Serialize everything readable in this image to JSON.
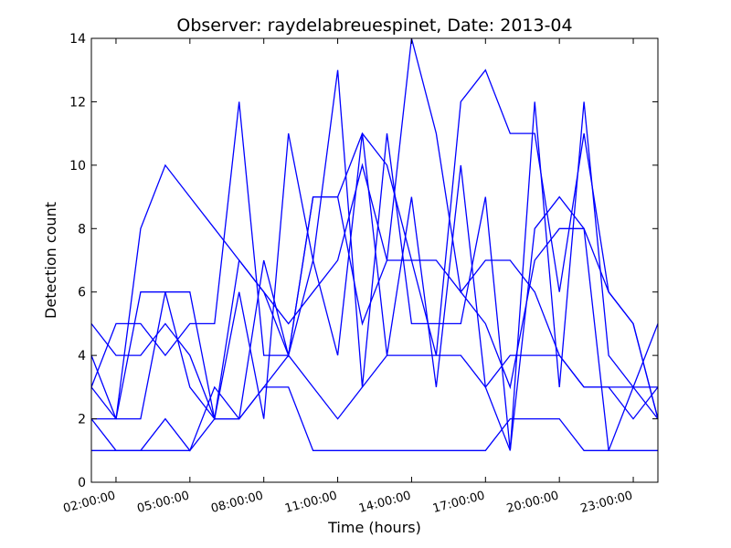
{
  "chart_data": {
    "type": "line",
    "title": "Observer: raydelabreuespinet, Date: 2013-04",
    "xlabel": "Time (hours)",
    "ylabel": "Detection count",
    "xlim": [
      1,
      24
    ],
    "ylim": [
      0,
      14
    ],
    "xticks": [
      2,
      5,
      8,
      11,
      14,
      17,
      20,
      23
    ],
    "xtick_labels": [
      "02:00:00",
      "05:00:00",
      "08:00:00",
      "11:00:00",
      "14:00:00",
      "17:00:00",
      "20:00:00",
      "23:00:00"
    ],
    "yticks": [
      0,
      2,
      4,
      6,
      8,
      10,
      12,
      14
    ],
    "ytick_labels": [
      "0",
      "2",
      "4",
      "6",
      "8",
      "10",
      "12",
      "14"
    ],
    "grid": false,
    "line_color": "#0000ff",
    "series": [
      {
        "x": [
          1,
          2,
          3,
          4,
          5,
          6,
          7,
          8,
          9,
          10,
          11,
          12,
          13,
          14,
          15,
          16,
          17,
          18,
          19,
          20,
          21,
          22,
          23,
          24
        ],
        "y": [
          5,
          4,
          4,
          5,
          4,
          2,
          2,
          7,
          4,
          9,
          9,
          11,
          10,
          7,
          7,
          6,
          5,
          3,
          7,
          8,
          8,
          6,
          5,
          2
        ]
      },
      {
        "x": [
          1,
          2,
          3,
          4,
          5,
          6,
          7,
          8,
          9,
          10,
          11,
          12,
          13,
          14,
          15,
          16,
          17,
          18,
          19,
          20,
          21,
          22,
          23,
          24
        ],
        "y": [
          3,
          2,
          2,
          6,
          6,
          2,
          7,
          6,
          4,
          9,
          9,
          5,
          7,
          14,
          11,
          6,
          7,
          7,
          6,
          4,
          3,
          3,
          3,
          3
        ]
      },
      {
        "x": [
          1,
          2,
          3,
          4,
          5,
          6,
          7,
          8,
          9,
          10,
          11,
          12,
          13,
          14,
          15,
          16,
          17,
          18,
          19,
          20,
          21,
          22,
          23,
          24
        ],
        "y": [
          4,
          2,
          8,
          10,
          9,
          8,
          7,
          6,
          5,
          6,
          7,
          10,
          7,
          7,
          4,
          12,
          13,
          11,
          11,
          6,
          11,
          6,
          5,
          2
        ]
      },
      {
        "x": [
          1,
          2,
          3,
          4,
          5,
          6,
          7,
          8,
          9,
          10,
          11,
          12,
          13,
          14,
          15,
          16,
          17,
          18,
          19,
          20,
          21,
          22,
          23,
          24
        ],
        "y": [
          1,
          1,
          1,
          2,
          1,
          3,
          2,
          3,
          3,
          1,
          1,
          1,
          1,
          1,
          1,
          1,
          1,
          2,
          2,
          2,
          1,
          1,
          1,
          1
        ]
      },
      {
        "x": [
          1,
          2,
          3,
          4,
          5,
          6,
          7,
          8,
          9,
          10,
          11,
          12,
          13,
          14,
          15,
          16,
          17,
          18,
          19,
          20,
          21,
          22,
          23,
          24
        ],
        "y": [
          2,
          1,
          1,
          1,
          1,
          2,
          2,
          3,
          4,
          3,
          2,
          3,
          4,
          4,
          4,
          4,
          3,
          4,
          4,
          4,
          3,
          3,
          2,
          3
        ]
      },
      {
        "x": [
          1,
          2,
          3,
          4,
          5,
          6,
          7,
          8,
          9,
          10,
          11,
          12,
          13,
          14,
          15,
          16,
          17,
          18,
          19,
          20,
          21,
          22,
          23,
          24
        ],
        "y": [
          3,
          5,
          5,
          4,
          5,
          5,
          12,
          4,
          4,
          7,
          13,
          3,
          11,
          5,
          5,
          5,
          9,
          1,
          12,
          3,
          12,
          4,
          3,
          2
        ]
      },
      {
        "x": [
          1,
          2,
          3,
          4,
          5,
          6,
          7,
          8,
          9,
          10,
          11,
          12,
          13,
          14,
          15,
          16,
          17,
          18,
          19,
          20,
          21,
          22,
          23,
          24
        ],
        "y": [
          2,
          2,
          6,
          6,
          3,
          2,
          6,
          2,
          11,
          7,
          4,
          11,
          4,
          9,
          3,
          10,
          3,
          1,
          8,
          9,
          8,
          1,
          3,
          5
        ]
      }
    ]
  }
}
